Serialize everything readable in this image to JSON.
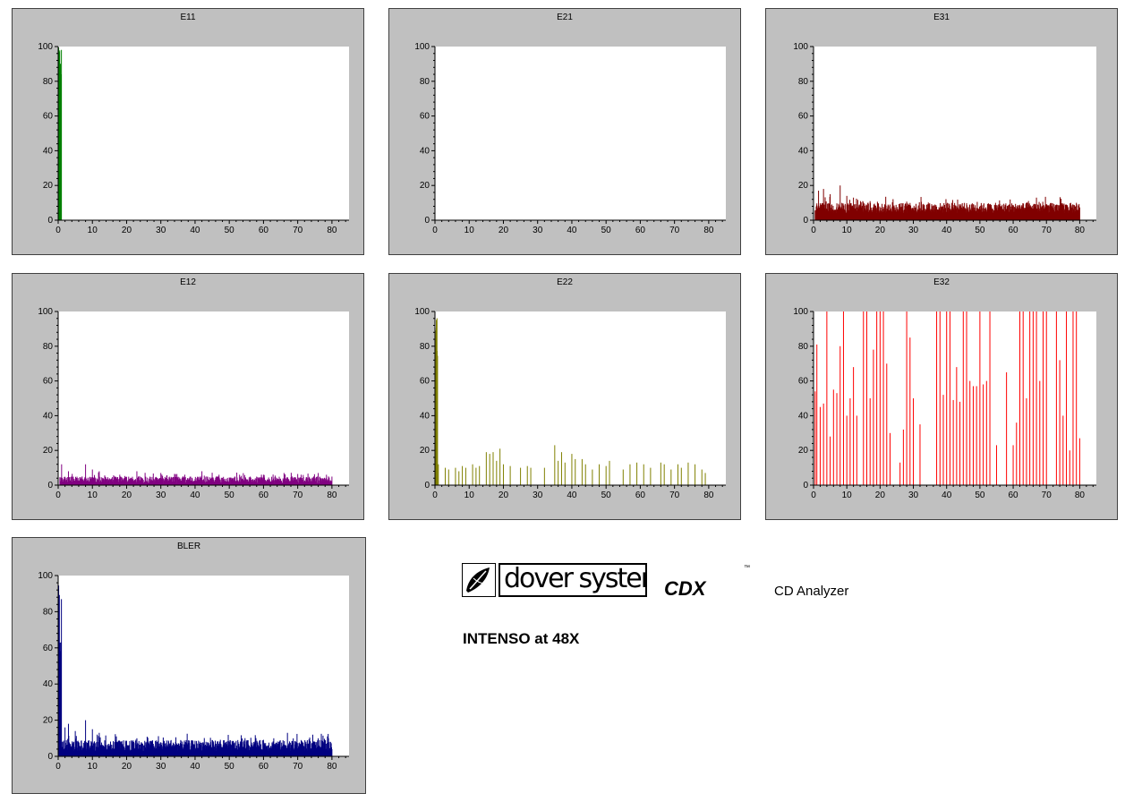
{
  "chart_data": [
    {
      "id": "E11",
      "type": "bar",
      "title": "E11",
      "color": "#008000",
      "xlim": [
        0,
        85
      ],
      "ylim": [
        0,
        100
      ],
      "xticks": [
        0,
        10,
        20,
        30,
        40,
        50,
        60,
        70,
        80
      ],
      "yticks": [
        0,
        20,
        40,
        60,
        80,
        100
      ],
      "x_max_data": 80,
      "baseline": 0,
      "noise": 0,
      "spikes": [],
      "initial_burst": {
        "x_end": 1.0,
        "min": 63,
        "max": 100
      }
    },
    {
      "id": "E21",
      "type": "bar",
      "title": "E21",
      "color": "#808000",
      "xlim": [
        0,
        85
      ],
      "ylim": [
        0,
        100
      ],
      "xticks": [
        0,
        10,
        20,
        30,
        40,
        50,
        60,
        70,
        80
      ],
      "yticks": [
        0,
        20,
        40,
        60,
        80,
        100
      ],
      "x_max_data": 80,
      "baseline": 0,
      "noise": 0,
      "spikes": [],
      "initial_burst": null
    },
    {
      "id": "E31",
      "type": "bar",
      "title": "E31",
      "color": "#800000",
      "xlim": [
        0,
        85
      ],
      "ylim": [
        0,
        100
      ],
      "xticks": [
        0,
        10,
        20,
        30,
        40,
        50,
        60,
        70,
        80
      ],
      "yticks": [
        0,
        20,
        40,
        60,
        80,
        100
      ],
      "x_max_data": 80,
      "baseline": 4,
      "noise": 6,
      "spikes": [
        [
          1.5,
          17
        ],
        [
          3,
          18
        ],
        [
          5,
          15
        ],
        [
          8,
          20
        ],
        [
          10,
          14
        ],
        [
          12,
          13
        ],
        [
          17,
          10
        ],
        [
          23,
          9
        ],
        [
          33,
          8
        ],
        [
          45,
          8
        ],
        [
          55,
          7
        ],
        [
          63,
          8
        ],
        [
          67,
          13
        ],
        [
          71,
          9
        ],
        [
          76,
          9
        ],
        [
          79,
          10
        ]
      ],
      "initial_burst": null
    },
    {
      "id": "E12",
      "type": "bar",
      "title": "E12",
      "color": "#800080",
      "xlim": [
        0,
        85
      ],
      "ylim": [
        0,
        100
      ],
      "xticks": [
        0,
        10,
        20,
        30,
        40,
        50,
        60,
        70,
        80
      ],
      "yticks": [
        0,
        20,
        40,
        60,
        80,
        100
      ],
      "x_max_data": 80,
      "baseline": 1,
      "noise": 4,
      "spikes": [
        [
          1,
          12
        ],
        [
          3,
          8
        ],
        [
          8,
          12
        ],
        [
          10,
          9
        ],
        [
          12,
          8
        ],
        [
          18,
          6
        ],
        [
          23,
          8
        ],
        [
          30,
          7
        ],
        [
          37,
          6
        ],
        [
          42,
          8
        ],
        [
          47,
          6
        ],
        [
          53,
          6
        ],
        [
          60,
          6
        ],
        [
          66,
          7
        ],
        [
          71,
          6
        ],
        [
          76,
          7
        ],
        [
          79,
          5
        ]
      ],
      "initial_burst": null
    },
    {
      "id": "E22",
      "type": "bar",
      "title": "E22",
      "color": "#808000",
      "xlim": [
        0,
        85
      ],
      "ylim": [
        0,
        100
      ],
      "xticks": [
        0,
        10,
        20,
        30,
        40,
        50,
        60,
        70,
        80
      ],
      "yticks": [
        0,
        20,
        40,
        60,
        80,
        100
      ],
      "x_max_data": 80,
      "baseline": 0,
      "noise": 0,
      "spikes": [
        [
          1,
          12
        ],
        [
          3,
          10
        ],
        [
          4,
          9
        ],
        [
          6,
          10
        ],
        [
          7,
          8
        ],
        [
          8,
          11
        ],
        [
          9,
          10
        ],
        [
          11,
          12
        ],
        [
          12,
          10
        ],
        [
          13,
          11
        ],
        [
          15,
          19
        ],
        [
          16,
          18
        ],
        [
          17,
          19
        ],
        [
          18,
          14
        ],
        [
          19,
          21
        ],
        [
          20,
          12
        ],
        [
          22,
          11
        ],
        [
          25,
          10
        ],
        [
          27,
          11
        ],
        [
          28,
          10
        ],
        [
          32,
          10
        ],
        [
          35,
          23
        ],
        [
          36,
          14
        ],
        [
          37,
          19
        ],
        [
          38,
          13
        ],
        [
          40,
          18
        ],
        [
          41,
          15
        ],
        [
          43,
          15
        ],
        [
          44,
          12
        ],
        [
          46,
          9
        ],
        [
          48,
          12
        ],
        [
          50,
          11
        ],
        [
          51,
          14
        ],
        [
          55,
          9
        ],
        [
          57,
          12
        ],
        [
          59,
          13
        ],
        [
          61,
          12
        ],
        [
          63,
          10
        ],
        [
          66,
          13
        ],
        [
          67,
          12
        ],
        [
          69,
          9
        ],
        [
          71,
          12
        ],
        [
          72,
          10
        ],
        [
          74,
          13
        ],
        [
          76,
          12
        ],
        [
          78,
          9
        ],
        [
          79,
          7
        ]
      ],
      "initial_burst": {
        "x_end": 0.8,
        "min": 70,
        "max": 100
      }
    },
    {
      "id": "E32",
      "type": "bar",
      "title": "E32",
      "color": "#ff0000",
      "xlim": [
        0,
        85
      ],
      "ylim": [
        0,
        100
      ],
      "xticks": [
        0,
        10,
        20,
        30,
        40,
        50,
        60,
        70,
        80
      ],
      "yticks": [
        0,
        20,
        40,
        60,
        80,
        100
      ],
      "x_max_data": 80,
      "baseline": 0,
      "noise": 0,
      "spikes": [
        [
          0.5,
          54
        ],
        [
          1,
          81
        ],
        [
          2,
          45
        ],
        [
          3,
          47
        ],
        [
          4,
          100
        ],
        [
          5,
          28
        ],
        [
          6,
          55
        ],
        [
          7,
          53
        ],
        [
          8,
          80
        ],
        [
          9,
          100
        ],
        [
          10,
          40
        ],
        [
          11,
          50
        ],
        [
          12,
          68
        ],
        [
          13,
          40
        ],
        [
          15,
          100
        ],
        [
          16,
          100
        ],
        [
          17,
          50
        ],
        [
          18,
          78
        ],
        [
          19,
          100
        ],
        [
          20,
          100
        ],
        [
          21,
          100
        ],
        [
          22,
          70
        ],
        [
          23,
          30
        ],
        [
          26,
          13
        ],
        [
          27,
          32
        ],
        [
          28,
          100
        ],
        [
          29,
          85
        ],
        [
          30,
          50
        ],
        [
          32,
          35
        ],
        [
          37,
          100
        ],
        [
          38,
          100
        ],
        [
          39,
          52
        ],
        [
          40,
          100
        ],
        [
          41,
          100
        ],
        [
          42,
          49
        ],
        [
          43,
          68
        ],
        [
          44,
          48
        ],
        [
          45,
          100
        ],
        [
          46,
          100
        ],
        [
          47,
          60
        ],
        [
          48,
          57
        ],
        [
          49,
          57
        ],
        [
          50,
          100
        ],
        [
          51,
          58
        ],
        [
          52,
          60
        ],
        [
          53,
          100
        ],
        [
          55,
          23
        ],
        [
          58,
          65
        ],
        [
          60,
          23
        ],
        [
          61,
          36
        ],
        [
          62,
          100
        ],
        [
          63,
          100
        ],
        [
          64,
          50
        ],
        [
          65,
          100
        ],
        [
          66,
          100
        ],
        [
          67,
          100
        ],
        [
          68,
          60
        ],
        [
          69,
          100
        ],
        [
          70,
          100
        ],
        [
          73,
          100
        ],
        [
          74,
          72
        ],
        [
          75,
          40
        ],
        [
          76,
          100
        ],
        [
          77,
          20
        ],
        [
          78,
          100
        ],
        [
          79,
          100
        ],
        [
          80,
          27
        ]
      ],
      "initial_burst": null
    },
    {
      "id": "BLER",
      "type": "bar",
      "title": "BLER",
      "color": "#000080",
      "xlim": [
        0,
        85
      ],
      "ylim": [
        0,
        100
      ],
      "xticks": [
        0,
        10,
        20,
        30,
        40,
        50,
        60,
        70,
        80
      ],
      "yticks": [
        0,
        20,
        40,
        60,
        80,
        100
      ],
      "x_max_data": 80,
      "baseline": 3,
      "noise": 6,
      "spikes": [
        [
          2,
          16
        ],
        [
          3,
          18
        ],
        [
          5,
          14
        ],
        [
          8,
          20
        ],
        [
          10,
          15
        ],
        [
          12,
          13
        ],
        [
          17,
          11
        ],
        [
          23,
          10
        ],
        [
          33,
          9
        ],
        [
          45,
          9
        ],
        [
          55,
          8
        ],
        [
          63,
          10
        ],
        [
          67,
          13
        ],
        [
          71,
          9
        ],
        [
          76,
          10
        ],
        [
          79,
          10
        ]
      ],
      "initial_burst": {
        "x_end": 1.0,
        "min": 27,
        "max": 100
      }
    }
  ],
  "branding": {
    "company": "dover systems",
    "product": "CDX",
    "trademark": "™",
    "subtitle": "CD Analyzer",
    "disc_label": "INTENSO at 48X"
  }
}
